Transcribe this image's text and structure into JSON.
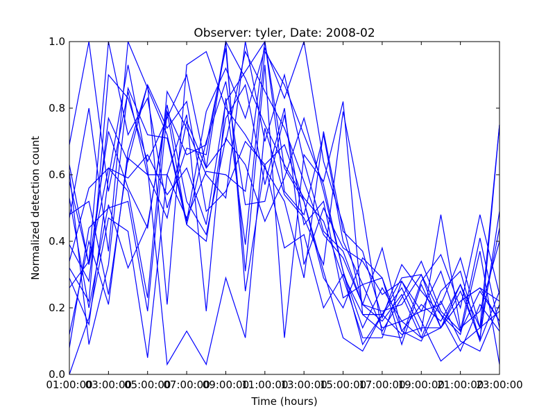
{
  "chart_data": {
    "type": "line",
    "title": "Observer: tyler, Date: 2008-02",
    "xlabel": "Time (hours)",
    "ylabel": "Normalized detection count",
    "xlim": [
      1,
      23
    ],
    "ylim": [
      0.0,
      1.0
    ],
    "x": [
      1,
      2,
      3,
      4,
      5,
      6,
      7,
      8,
      9,
      10,
      11,
      12,
      13,
      14,
      15,
      16,
      17,
      18,
      19,
      20,
      21,
      22,
      23
    ],
    "x_ticks": [
      1,
      3,
      5,
      7,
      9,
      11,
      13,
      15,
      17,
      19,
      21,
      23
    ],
    "x_tick_labels": [
      "01:00:00",
      "03:00:00",
      "05:00:00",
      "07:00:00",
      "09:00:00",
      "11:00:00",
      "13:00:00",
      "15:00:00",
      "17:00:00",
      "19:00:00",
      "21:00:00",
      "23:00:00"
    ],
    "y_ticks": [
      0.0,
      0.2,
      0.4,
      0.6,
      0.8,
      1.0
    ],
    "y_tick_labels": [
      "0.0",
      "0.2",
      "0.4",
      "0.6",
      "0.8",
      "1.0"
    ],
    "grid": false,
    "legend": "none",
    "line_color": "#0000ff",
    "series": [
      {
        "values": [
          0.69,
          1.0,
          0.55,
          0.85,
          0.6,
          0.47,
          0.76,
          0.62,
          0.7,
          0.97,
          0.85,
          0.74,
          0.58,
          0.42,
          0.35,
          0.21,
          0.16,
          0.24,
          0.11,
          0.25,
          0.31,
          0.1,
          0.25
        ]
      },
      {
        "values": [
          0.47,
          0.8,
          0.37,
          1.0,
          0.86,
          0.72,
          0.46,
          0.79,
          0.92,
          0.77,
          0.98,
          0.83,
          1.0,
          0.64,
          0.45,
          0.21,
          0.19,
          0.21,
          0.3,
          0.14,
          0.25,
          0.11,
          0.49
        ]
      },
      {
        "values": [
          0.32,
          0.22,
          0.9,
          0.83,
          0.64,
          0.77,
          0.9,
          0.62,
          1.0,
          0.89,
          0.75,
          0.63,
          0.53,
          0.46,
          0.29,
          0.11,
          0.11,
          0.28,
          0.19,
          0.31,
          0.13,
          0.25,
          0.16
        ]
      },
      {
        "values": [
          0.58,
          0.33,
          0.62,
          0.55,
          0.23,
          0.85,
          0.74,
          0.6,
          0.53,
          1.0,
          0.7,
          0.9,
          0.64,
          0.43,
          0.37,
          0.21,
          0.38,
          0.13,
          0.1,
          0.22,
          0.1,
          0.07,
          0.21
        ]
      },
      {
        "values": [
          0.12,
          0.4,
          0.21,
          0.67,
          0.87,
          0.21,
          0.93,
          0.97,
          0.8,
          0.72,
          0.62,
          0.52,
          0.29,
          0.73,
          0.43,
          0.37,
          0.17,
          0.33,
          0.25,
          0.18,
          0.12,
          0.37,
          0.03
        ]
      },
      {
        "values": [
          0.61,
          0.09,
          0.33,
          0.86,
          0.72,
          0.71,
          0.45,
          0.4,
          0.77,
          0.87,
          0.57,
          0.8,
          0.33,
          0.5,
          0.38,
          0.34,
          0.24,
          0.28,
          0.16,
          0.04,
          0.09,
          0.14,
          0.19
        ]
      },
      {
        "values": [
          0.34,
          0.56,
          0.62,
          0.59,
          0.66,
          0.54,
          0.62,
          0.45,
          0.82,
          0.91,
          1.0,
          0.55,
          0.48,
          0.72,
          0.4,
          0.27,
          0.29,
          0.09,
          0.27,
          0.14,
          0.22,
          0.26,
          0.16
        ]
      },
      {
        "values": [
          0.39,
          0.28,
          0.77,
          0.64,
          0.87,
          0.74,
          0.82,
          0.49,
          0.55,
          0.7,
          0.63,
          0.69,
          0.52,
          0.31,
          0.11,
          0.07,
          0.18,
          0.26,
          0.13,
          0.48,
          0.14,
          0.19,
          0.4
        ]
      },
      {
        "values": [
          0.26,
          0.34,
          1.0,
          0.72,
          0.83,
          0.5,
          0.68,
          0.66,
          1.0,
          0.25,
          0.63,
          0.38,
          0.42,
          0.2,
          0.3,
          0.18,
          0.13,
          0.23,
          0.34,
          0.19,
          0.13,
          0.41,
          0.14
        ]
      },
      {
        "values": [
          0.63,
          0.33,
          0.73,
          0.56,
          0.44,
          0.81,
          0.52,
          0.42,
          0.71,
          0.63,
          0.46,
          0.59,
          0.77,
          0.55,
          0.31,
          0.14,
          0.26,
          0.16,
          0.11,
          0.14,
          0.27,
          0.1,
          0.75
        ]
      },
      {
        "values": [
          0.08,
          0.44,
          0.5,
          0.52,
          0.19,
          0.79,
          0.66,
          0.69,
          0.98,
          0.31,
          0.93,
          0.11,
          0.66,
          0.58,
          0.82,
          0.18,
          0.18,
          0.12,
          0.14,
          0.14,
          0.22,
          0.26,
          0.22
        ]
      },
      {
        "values": [
          0.48,
          0.52,
          0.24,
          0.65,
          0.6,
          0.6,
          0.78,
          0.19,
          0.83,
          0.39,
          0.97,
          0.87,
          0.72,
          0.57,
          0.31,
          0.09,
          0.18,
          0.29,
          0.3,
          0.18,
          0.07,
          0.21,
          0.13
        ]
      },
      {
        "values": [
          0.29,
          0.15,
          0.59,
          0.93,
          0.62,
          0.03,
          0.13,
          0.03,
          0.29,
          0.11,
          0.74,
          0.54,
          0.47,
          0.33,
          0.79,
          0.49,
          0.12,
          0.11,
          0.28,
          0.36,
          0.2,
          0.48,
          0.24
        ]
      },
      {
        "values": [
          0.53,
          0.2,
          0.51,
          0.32,
          0.45,
          0.79,
          0.45,
          0.7,
          0.88,
          0.51,
          0.52,
          0.78,
          0.45,
          0.52,
          0.23,
          0.27,
          0.14,
          0.16,
          0.19,
          0.21,
          0.35,
          0.14,
          0.75
        ]
      },
      {
        "values": [
          0.0,
          0.17,
          0.47,
          0.43,
          0.05,
          0.6,
          0.47,
          0.61,
          0.6,
          0.55,
          1.0,
          0.62,
          0.52,
          0.29,
          0.2,
          0.35,
          0.29,
          0.13,
          0.21,
          0.16,
          0.27,
          0.14,
          0.44
        ]
      }
    ]
  }
}
